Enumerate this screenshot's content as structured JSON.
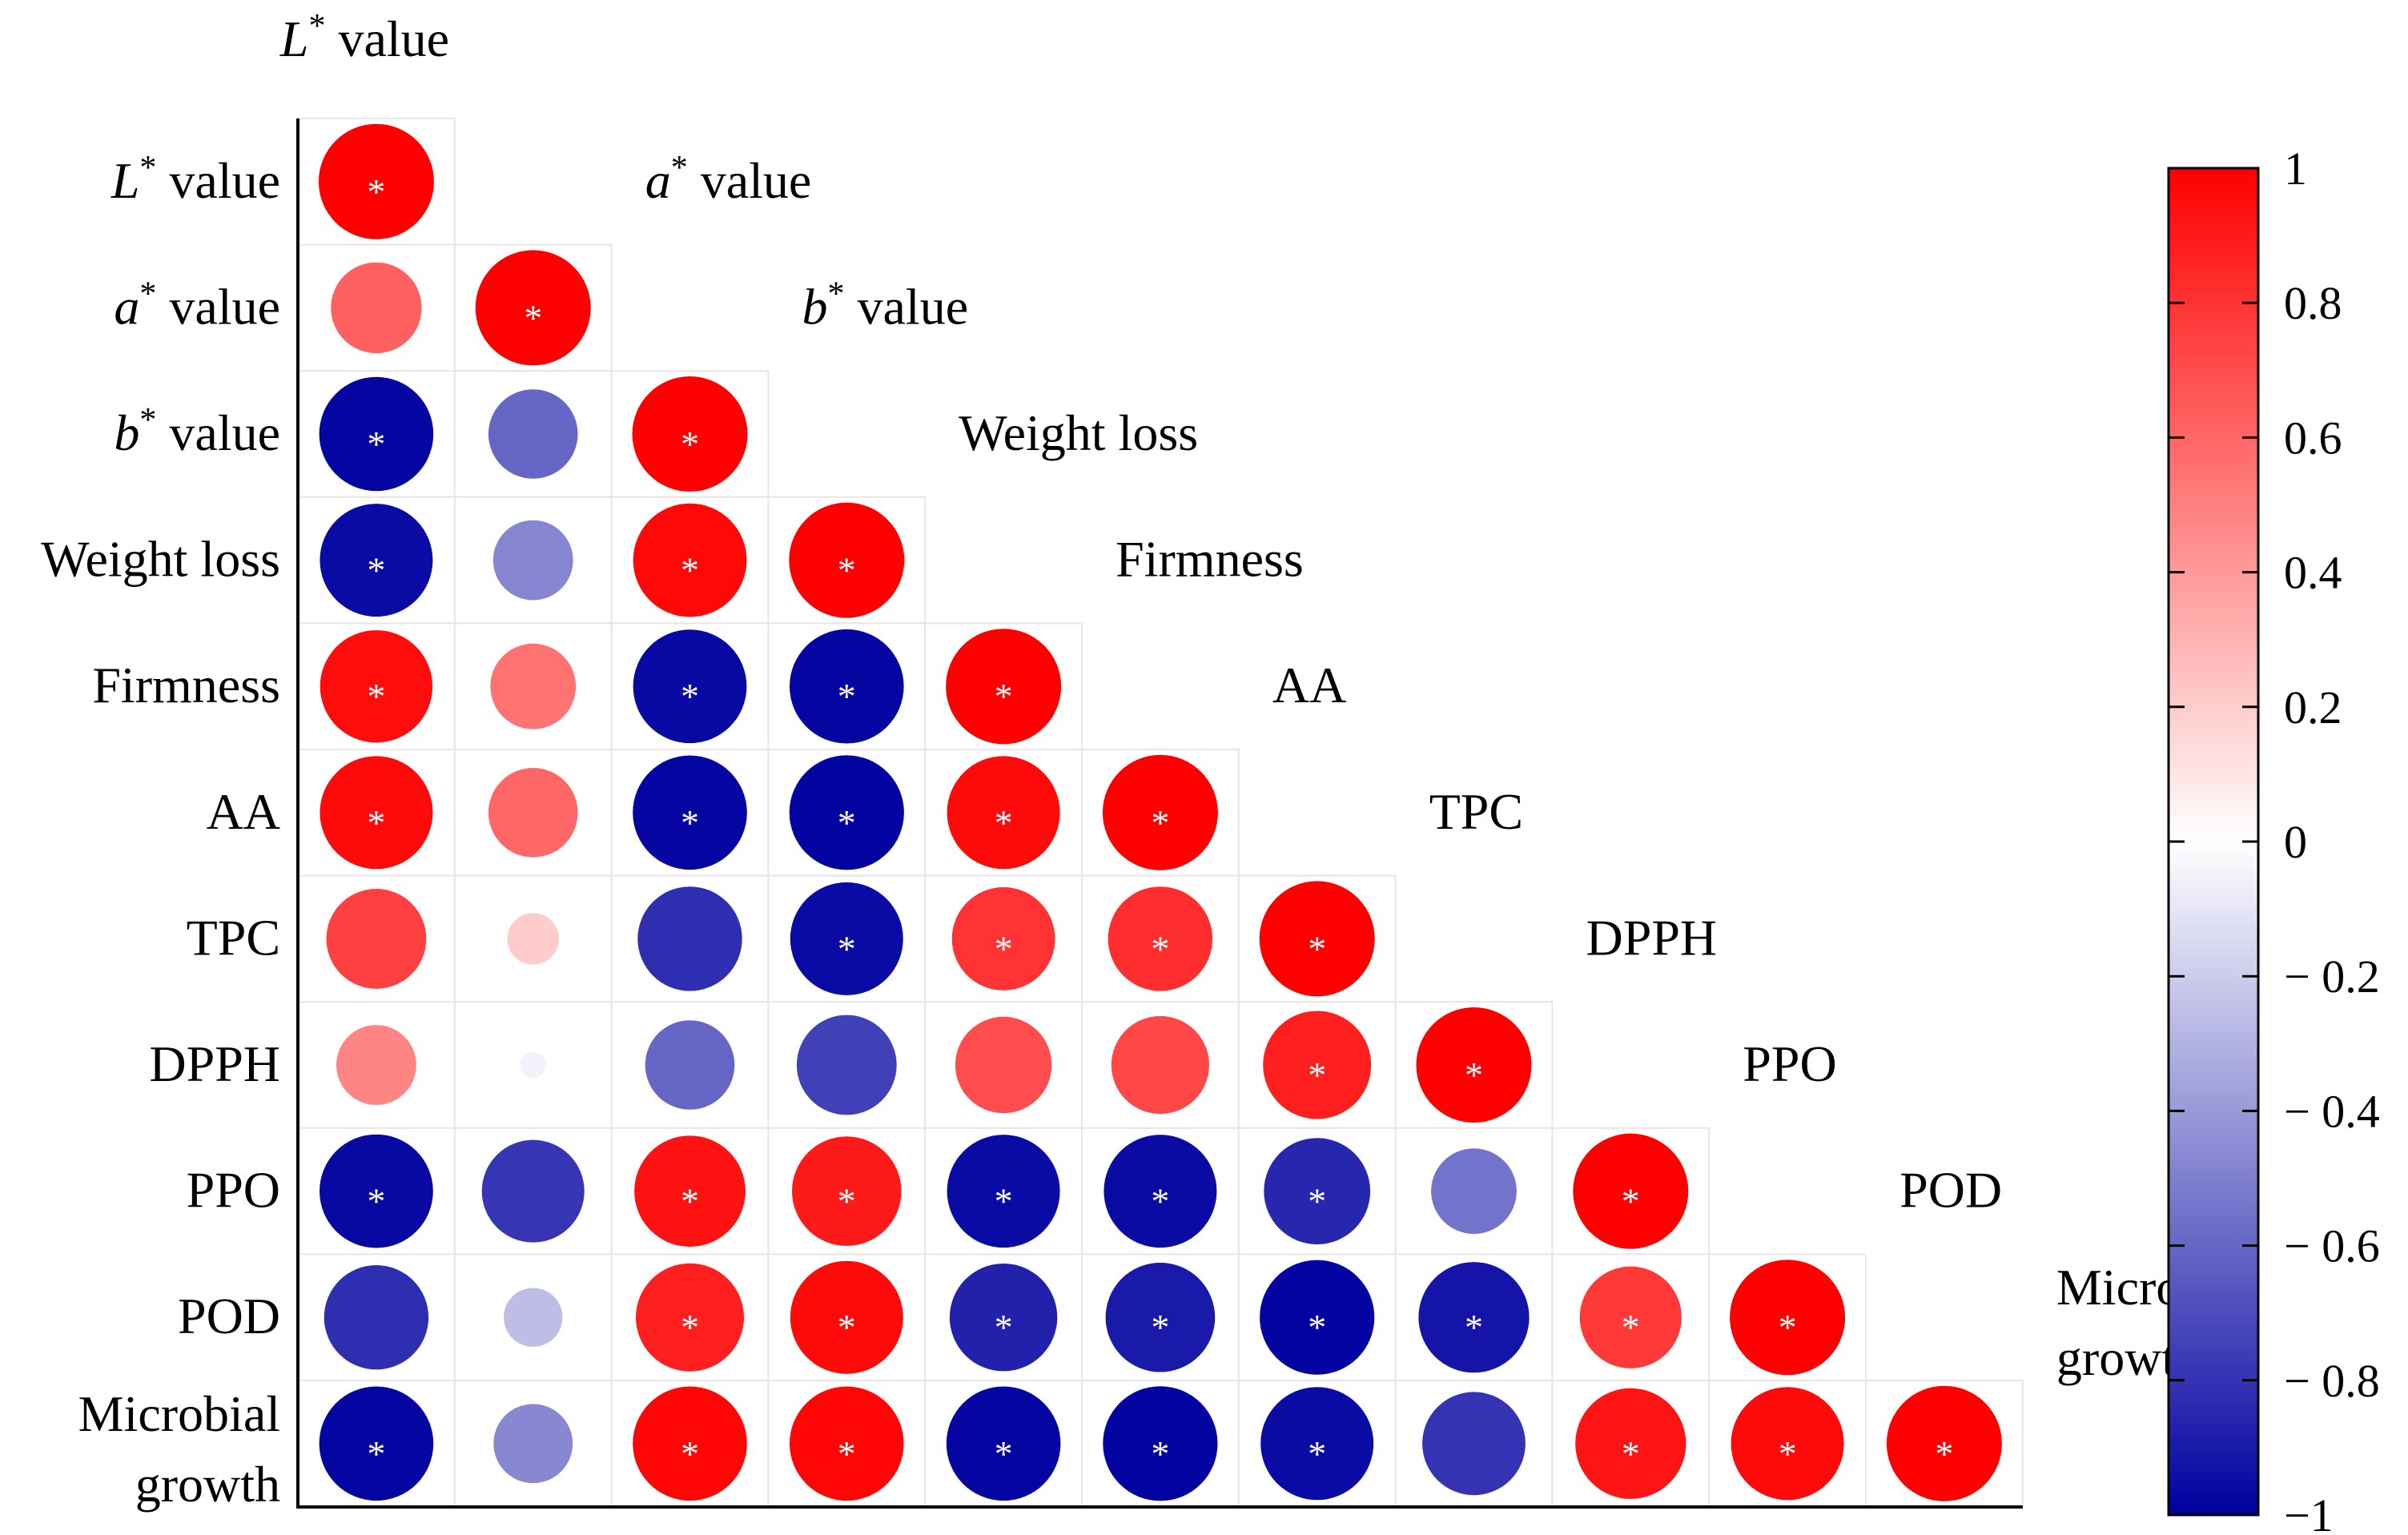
{
  "chart_data": {
    "type": "heatmap",
    "title": "",
    "variables": [
      [
        "L",
        "value"
      ],
      [
        "a",
        "value"
      ],
      [
        "b",
        "value"
      ],
      [
        "",
        "Weight loss"
      ],
      [
        "",
        "Firmness"
      ],
      [
        "",
        "AA"
      ],
      [
        "",
        "TPC"
      ],
      [
        "",
        "DPPH"
      ],
      [
        "",
        "PPO"
      ],
      [
        "",
        "POD"
      ],
      [
        "",
        "Microbial growth"
      ]
    ],
    "superscript": "*",
    "multiline_labels": {
      "Microbial growth": [
        "Microbial",
        "growth"
      ]
    },
    "significance_marker": "*",
    "correlations": [
      [
        1.0
      ],
      [
        0.62,
        1.0
      ],
      [
        -0.98,
        -0.6,
        1.0
      ],
      [
        -0.96,
        -0.48,
        0.97,
        1.0
      ],
      [
        0.95,
        0.55,
        -0.97,
        -0.98,
        1.0
      ],
      [
        0.96,
        0.6,
        -0.98,
        -0.99,
        0.96,
        1.0
      ],
      [
        0.75,
        0.2,
        -0.82,
        -0.96,
        0.8,
        0.82,
        1.0
      ],
      [
        0.48,
        -0.05,
        -0.6,
        -0.75,
        0.7,
        0.72,
        0.88,
        1.0
      ],
      [
        -0.97,
        -0.79,
        0.93,
        0.9,
        -0.96,
        -0.96,
        -0.85,
        -0.55,
        1.0
      ],
      [
        -0.82,
        -0.26,
        0.88,
        0.96,
        -0.87,
        -0.9,
        -0.99,
        -0.92,
        0.78,
        1.0
      ],
      [
        -0.98,
        -0.47,
        0.98,
        0.98,
        -0.98,
        -0.99,
        -0.96,
        -0.8,
        0.92,
        0.96,
        1.0
      ]
    ],
    "significant": [
      [
        true
      ],
      [
        false,
        true
      ],
      [
        true,
        false,
        true
      ],
      [
        true,
        false,
        true,
        true
      ],
      [
        true,
        false,
        true,
        true,
        true
      ],
      [
        true,
        false,
        true,
        true,
        true,
        true
      ],
      [
        false,
        false,
        false,
        true,
        true,
        true,
        true
      ],
      [
        false,
        false,
        false,
        false,
        false,
        false,
        true,
        true
      ],
      [
        true,
        false,
        true,
        true,
        true,
        true,
        true,
        false,
        true
      ],
      [
        false,
        false,
        true,
        true,
        true,
        true,
        true,
        true,
        true,
        true
      ],
      [
        true,
        false,
        true,
        true,
        true,
        true,
        true,
        false,
        true,
        true,
        true
      ]
    ],
    "colorbar": {
      "min": -1,
      "max": 1,
      "ticks": [
        "1",
        "0.8",
        "0.6",
        "0.4",
        "0.2",
        "0",
        "− 0.2",
        "− 0.4",
        "− 0.6",
        "− 0.8",
        "−1"
      ],
      "tick_values": [
        1,
        0.8,
        0.6,
        0.4,
        0.2,
        0,
        -0.2,
        -0.4,
        -0.6,
        -0.8,
        -1
      ],
      "color_negative": "#0000a0",
      "color_zero": "#ffffff",
      "color_positive": "#ff0000"
    },
    "legend": "right"
  }
}
